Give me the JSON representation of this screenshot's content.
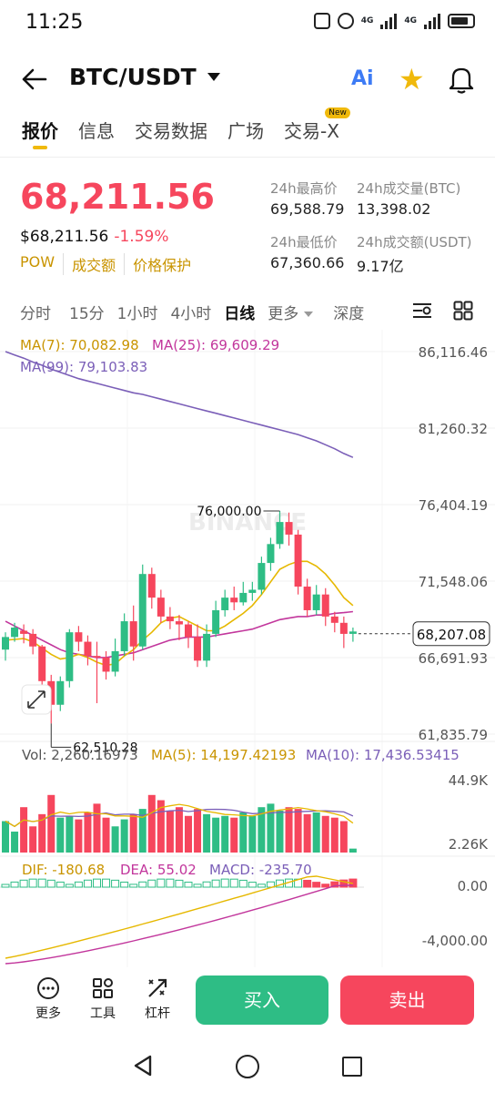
{
  "status_bar": {
    "time": "11:25",
    "net1": "4G",
    "net2": "4G"
  },
  "header": {
    "pair": "BTC/USDT",
    "ai_label": "Ai"
  },
  "tabs": [
    {
      "label": "报价",
      "active": true
    },
    {
      "label": "信息"
    },
    {
      "label": "交易数据"
    },
    {
      "label": "广场"
    },
    {
      "label": "交易-X",
      "badge": "New"
    }
  ],
  "price": {
    "last": "68,211.56",
    "usd": "$68,211.56",
    "change": "-1.59%",
    "tags": [
      "POW",
      "成交额",
      "价格保护"
    ]
  },
  "stats": {
    "high_label": "24h最高价",
    "high_value": "69,588.79",
    "vol_btc_label": "24h成交量(BTC)",
    "vol_btc_value": "13,398.02",
    "low_label": "24h最低价",
    "low_value": "67,360.66",
    "vol_usdt_label": "24h成交额(USDT)",
    "vol_usdt_value": "9.17亿"
  },
  "intervals": [
    {
      "label": "分时"
    },
    {
      "label": "15分"
    },
    {
      "label": "1小时"
    },
    {
      "label": "4小时"
    },
    {
      "label": "日线",
      "active": true
    },
    {
      "label": "更多",
      "dropdown": true
    },
    {
      "label": "深度"
    }
  ],
  "chart_data": {
    "type": "candlestick",
    "ma_legend": {
      "ma7": "MA(7): 70,082.98",
      "ma25": "MA(25): 69,609.29",
      "ma99": "MA(99): 79,103.83"
    },
    "y_ticks": [
      "86,116.46",
      "81,260.32",
      "76,404.19",
      "71,548.06",
      "66,691.93",
      "61,835.79"
    ],
    "y_tick_values": [
      86116.46,
      81260.32,
      76404.19,
      71548.06,
      66691.93,
      61835.79
    ],
    "current_price_label": "68,207.08",
    "current_price": 68207.08,
    "high_marker": "76,000.00",
    "high_marker_value": 76000.0,
    "low_marker": "62,510.28",
    "low_marker_value": 62510.28,
    "watermark": "BINANCE",
    "candles": [
      [
        67200,
        68000,
        66500,
        68300
      ],
      [
        68000,
        68600,
        67700,
        68900
      ],
      [
        68400,
        68200,
        67600,
        68800
      ],
      [
        68200,
        67400,
        66900,
        68500
      ],
      [
        67400,
        65200,
        64600,
        67500
      ],
      [
        65200,
        63700,
        62510,
        65600
      ],
      [
        63700,
        65200,
        63300,
        65500
      ],
      [
        65200,
        68300,
        64800,
        68500
      ],
      [
        68300,
        67700,
        67100,
        68700
      ],
      [
        67700,
        66800,
        66200,
        68100
      ],
      [
        66800,
        66700,
        63800,
        67700
      ],
      [
        66700,
        65800,
        65300,
        67100
      ],
      [
        65800,
        67100,
        65500,
        67900
      ],
      [
        67100,
        69000,
        66800,
        69500
      ],
      [
        69000,
        67400,
        66500,
        70000
      ],
      [
        67400,
        72000,
        67200,
        72600
      ],
      [
        72000,
        70500,
        69800,
        72400
      ],
      [
        70500,
        69300,
        68900,
        71000
      ],
      [
        69300,
        69000,
        68500,
        69900
      ],
      [
        69000,
        68800,
        67800,
        69400
      ],
      [
        68800,
        68000,
        67300,
        69000
      ],
      [
        68000,
        66500,
        66100,
        68800
      ],
      [
        66500,
        68200,
        66100,
        68800
      ],
      [
        68200,
        69700,
        68000,
        70300
      ],
      [
        69700,
        70500,
        69300,
        71000
      ],
      [
        70500,
        70200,
        69700,
        71200
      ],
      [
        70200,
        70800,
        70000,
        71500
      ],
      [
        70800,
        71000,
        70300,
        71500
      ],
      [
        71000,
        72700,
        70700,
        73100
      ],
      [
        72700,
        73900,
        72200,
        74300
      ],
      [
        73900,
        75300,
        73600,
        76000
      ],
      [
        75300,
        74500,
        73800,
        75900
      ],
      [
        74500,
        71200,
        70700,
        74800
      ],
      [
        71200,
        69700,
        69300,
        71700
      ],
      [
        69700,
        70700,
        69400,
        71300
      ],
      [
        70700,
        69300,
        68700,
        71100
      ],
      [
        69300,
        68900,
        68300,
        69600
      ],
      [
        68900,
        68200,
        67300,
        69300
      ],
      [
        68200,
        68350,
        67700,
        68600
      ]
    ],
    "ma7": [
      67800,
      67850,
      67900,
      67700,
      67300,
      66900,
      66600,
      66700,
      66900,
      66700,
      66400,
      66200,
      66300,
      66800,
      67200,
      67800,
      68300,
      68900,
      69200,
      69300,
      69000,
      68700,
      68400,
      68400,
      68700,
      69100,
      69500,
      70000,
      70700,
      71500,
      72300,
      72600,
      72800,
      72800,
      72500,
      72000,
      71300,
      70500,
      70000
    ],
    "ma25": [
      69000,
      68700,
      68400,
      68100,
      67800,
      67500,
      67200,
      67000,
      66900,
      66800,
      66700,
      66700,
      66800,
      66900,
      67000,
      67200,
      67400,
      67600,
      67800,
      67900,
      68000,
      68000,
      68000,
      68100,
      68200,
      68300,
      68400,
      68500,
      68700,
      68900,
      69100,
      69200,
      69300,
      69300,
      69400,
      69400,
      69500,
      69550,
      69609
    ],
    "ma99": [
      86116,
      85900,
      85700,
      85450,
      85250,
      85000,
      84800,
      84600,
      84400,
      84250,
      84100,
      83950,
      83800,
      83650,
      83500,
      83400,
      83250,
      83100,
      82950,
      82800,
      82650,
      82500,
      82350,
      82200,
      82050,
      81900,
      81750,
      81600,
      81450,
      81300,
      81150,
      81000,
      80850,
      80650,
      80450,
      80200,
      79950,
      79650,
      79400
    ],
    "volume": {
      "legend": "Vol: 2,260.16973",
      "ma5_label": "MA(5): 14,197.42193",
      "ma10_label": "MA(10): 17,436.53415",
      "y_ticks": [
        "44.9K",
        "2.26K"
      ],
      "values": [
        18000,
        12000,
        26000,
        15000,
        22000,
        33000,
        20000,
        21000,
        19000,
        23000,
        28000,
        20000,
        15000,
        19000,
        22000,
        25000,
        33000,
        30000,
        24000,
        26000,
        21000,
        25000,
        22000,
        20000,
        21000,
        20000,
        23000,
        21000,
        26000,
        28000,
        24000,
        26000,
        25000,
        22000,
        23000,
        21000,
        20000,
        18000,
        2260
      ]
    },
    "macd": {
      "dif_label": "DIF: -180.68",
      "dea_label": "DEA: 55.02",
      "macd_label": "MACD: -235.70",
      "y_ticks": [
        "0.00",
        "-4,000.00"
      ]
    }
  },
  "bottom": {
    "more": "更多",
    "tools": "工具",
    "leverage": "杠杆",
    "buy": "买入",
    "sell": "卖出"
  }
}
